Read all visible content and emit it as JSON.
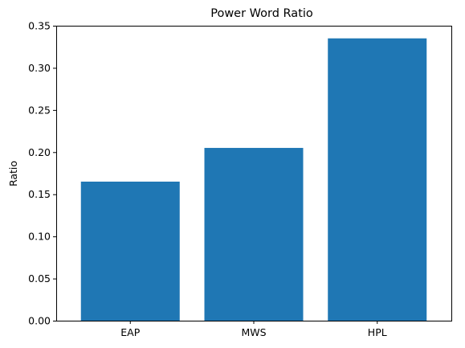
{
  "chart_data": {
    "type": "bar",
    "title": "Power Word Ratio",
    "xlabel": "",
    "ylabel": "Ratio",
    "categories": [
      "EAP",
      "MWS",
      "HPL"
    ],
    "values": [
      0.165,
      0.205,
      0.335
    ],
    "ylim": [
      0,
      0.35
    ],
    "yticks": [
      0.0,
      0.05,
      0.1,
      0.15,
      0.2,
      0.25,
      0.3,
      0.35
    ],
    "ytick_labels": [
      "0.00",
      "0.05",
      "0.10",
      "0.15",
      "0.20",
      "0.25",
      "0.30",
      "0.35"
    ],
    "bar_color": "#1f77b4",
    "grid": false,
    "legend": "none"
  }
}
